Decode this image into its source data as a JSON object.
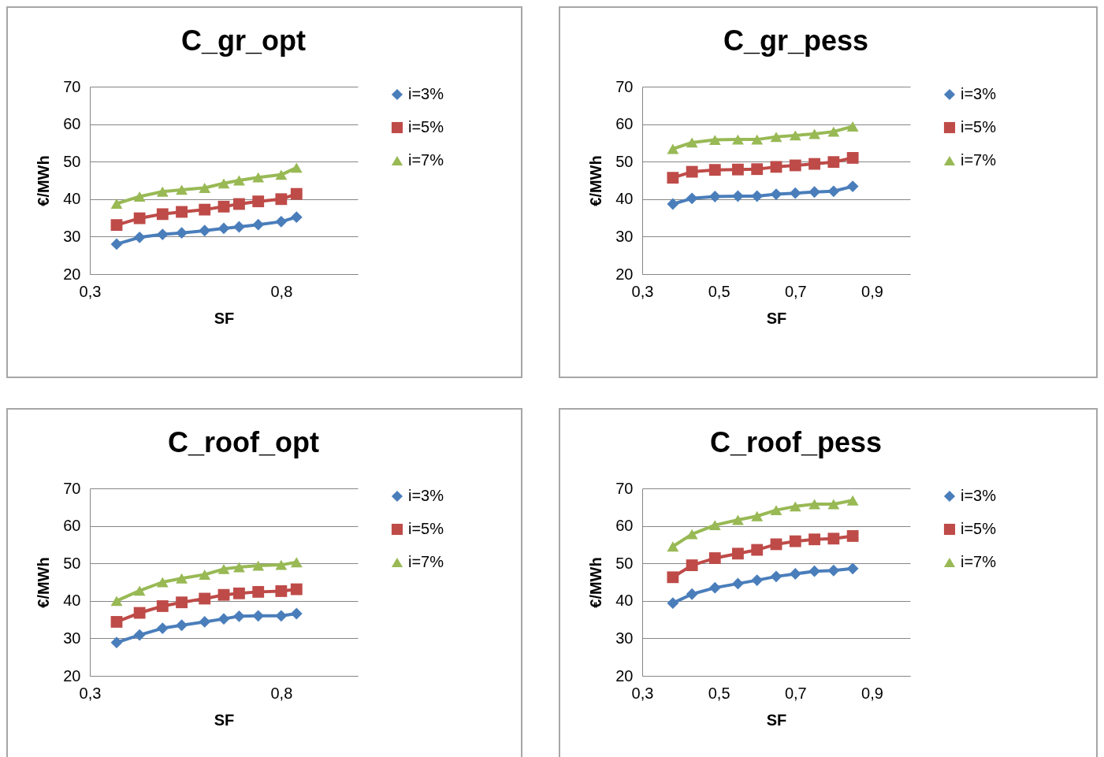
{
  "chart_data": [
    {
      "type": "line",
      "title": "C_gr_opt",
      "xlabel": "SF",
      "ylabel": "€/MWh",
      "xlim": [
        0.3,
        1.0
      ],
      "xticks": [
        {
          "value": 0.3,
          "label": "0,3"
        },
        {
          "value": 0.8,
          "label": "0,8"
        }
      ],
      "ylim": [
        20,
        70
      ],
      "yticks": [
        20,
        30,
        40,
        50,
        60,
        70
      ],
      "grid": "y",
      "legend": "right",
      "x": [
        0.37,
        0.43,
        0.49,
        0.54,
        0.6,
        0.65,
        0.69,
        0.74,
        0.8,
        0.84
      ],
      "series": [
        {
          "name": "i=3%",
          "color": "#4a7ebb",
          "marker": "diamond",
          "values": [
            28,
            29.8,
            30.6,
            31,
            31.6,
            32.2,
            32.6,
            33.2,
            34,
            35.2
          ]
        },
        {
          "name": "i=5%",
          "color": "#be4b48",
          "marker": "square",
          "values": [
            33.1,
            34.9,
            36,
            36.6,
            37.2,
            38,
            38.7,
            39.4,
            40,
            41.4
          ]
        },
        {
          "name": "i=7%",
          "color": "#98b954",
          "marker": "triangle",
          "values": [
            38.8,
            40.7,
            42,
            42.5,
            43,
            44.2,
            45,
            45.8,
            46.5,
            48.4
          ]
        }
      ]
    },
    {
      "type": "line",
      "title": "C_gr_pess",
      "xlabel": "SF",
      "ylabel": "€/MWh",
      "xlim": [
        0.3,
        1.0
      ],
      "xticks": [
        {
          "value": 0.3,
          "label": "0,3"
        },
        {
          "value": 0.5,
          "label": "0,5"
        },
        {
          "value": 0.7,
          "label": "0,7"
        },
        {
          "value": 0.9,
          "label": "0,9"
        }
      ],
      "ylim": [
        20,
        70
      ],
      "yticks": [
        20,
        30,
        40,
        50,
        60,
        70
      ],
      "grid": "y",
      "legend": "right",
      "x": [
        0.38,
        0.43,
        0.49,
        0.55,
        0.6,
        0.65,
        0.7,
        0.75,
        0.8,
        0.85
      ],
      "series": [
        {
          "name": "i=3%",
          "color": "#4a7ebb",
          "marker": "diamond",
          "values": [
            38.7,
            40.2,
            40.7,
            40.8,
            40.8,
            41.3,
            41.6,
            41.9,
            42.1,
            43.4
          ]
        },
        {
          "name": "i=5%",
          "color": "#be4b48",
          "marker": "square",
          "values": [
            45.7,
            47.3,
            47.8,
            47.9,
            48,
            48.6,
            49,
            49.4,
            49.9,
            51
          ]
        },
        {
          "name": "i=7%",
          "color": "#98b954",
          "marker": "triangle",
          "values": [
            53.4,
            55.1,
            55.8,
            55.9,
            55.9,
            56.6,
            57,
            57.4,
            58,
            59.4
          ]
        }
      ]
    },
    {
      "type": "line",
      "title": "C_roof_opt",
      "xlabel": "SF",
      "ylabel": "€/MWh",
      "xlim": [
        0.3,
        1.0
      ],
      "xticks": [
        {
          "value": 0.3,
          "label": "0,3"
        },
        {
          "value": 0.8,
          "label": "0,8"
        }
      ],
      "ylim": [
        20,
        70
      ],
      "yticks": [
        20,
        30,
        40,
        50,
        60,
        70
      ],
      "grid": "y",
      "legend": "right",
      "x": [
        0.37,
        0.43,
        0.49,
        0.54,
        0.6,
        0.65,
        0.69,
        0.74,
        0.8,
        0.84
      ],
      "series": [
        {
          "name": "i=3%",
          "color": "#4a7ebb",
          "marker": "diamond",
          "values": [
            28.9,
            30.9,
            32.7,
            33.5,
            34.4,
            35.2,
            35.9,
            36,
            36,
            36.6
          ]
        },
        {
          "name": "i=5%",
          "color": "#be4b48",
          "marker": "square",
          "values": [
            34.4,
            36.8,
            38.6,
            39.6,
            40.6,
            41.6,
            42,
            42.4,
            42.6,
            43.1
          ]
        },
        {
          "name": "i=7%",
          "color": "#98b954",
          "marker": "triangle",
          "values": [
            40,
            42.7,
            45,
            46,
            47,
            48.5,
            49,
            49.4,
            49.6,
            50.3
          ]
        }
      ]
    },
    {
      "type": "line",
      "title": "C_roof_pess",
      "xlabel": "SF",
      "ylabel": "€/MWh",
      "xlim": [
        0.3,
        1.0
      ],
      "xticks": [
        {
          "value": 0.3,
          "label": "0,3"
        },
        {
          "value": 0.5,
          "label": "0,5"
        },
        {
          "value": 0.7,
          "label": "0,7"
        },
        {
          "value": 0.9,
          "label": "0,9"
        }
      ],
      "ylim": [
        20,
        70
      ],
      "yticks": [
        20,
        30,
        40,
        50,
        60,
        70
      ],
      "grid": "y",
      "legend": "right",
      "x": [
        0.38,
        0.43,
        0.49,
        0.55,
        0.6,
        0.65,
        0.7,
        0.75,
        0.8,
        0.85
      ],
      "series": [
        {
          "name": "i=3%",
          "color": "#4a7ebb",
          "marker": "diamond",
          "values": [
            39.4,
            41.8,
            43.5,
            44.6,
            45.5,
            46.5,
            47.2,
            47.9,
            48.1,
            48.6
          ]
        },
        {
          "name": "i=5%",
          "color": "#be4b48",
          "marker": "square",
          "values": [
            46.3,
            49.5,
            51.4,
            52.6,
            53.6,
            55.1,
            55.9,
            56.4,
            56.6,
            57.3
          ]
        },
        {
          "name": "i=7%",
          "color": "#98b954",
          "marker": "triangle",
          "values": [
            54.5,
            57.8,
            60.2,
            61.6,
            62.6,
            64.2,
            65.2,
            65.8,
            65.8,
            66.8
          ]
        }
      ]
    }
  ]
}
